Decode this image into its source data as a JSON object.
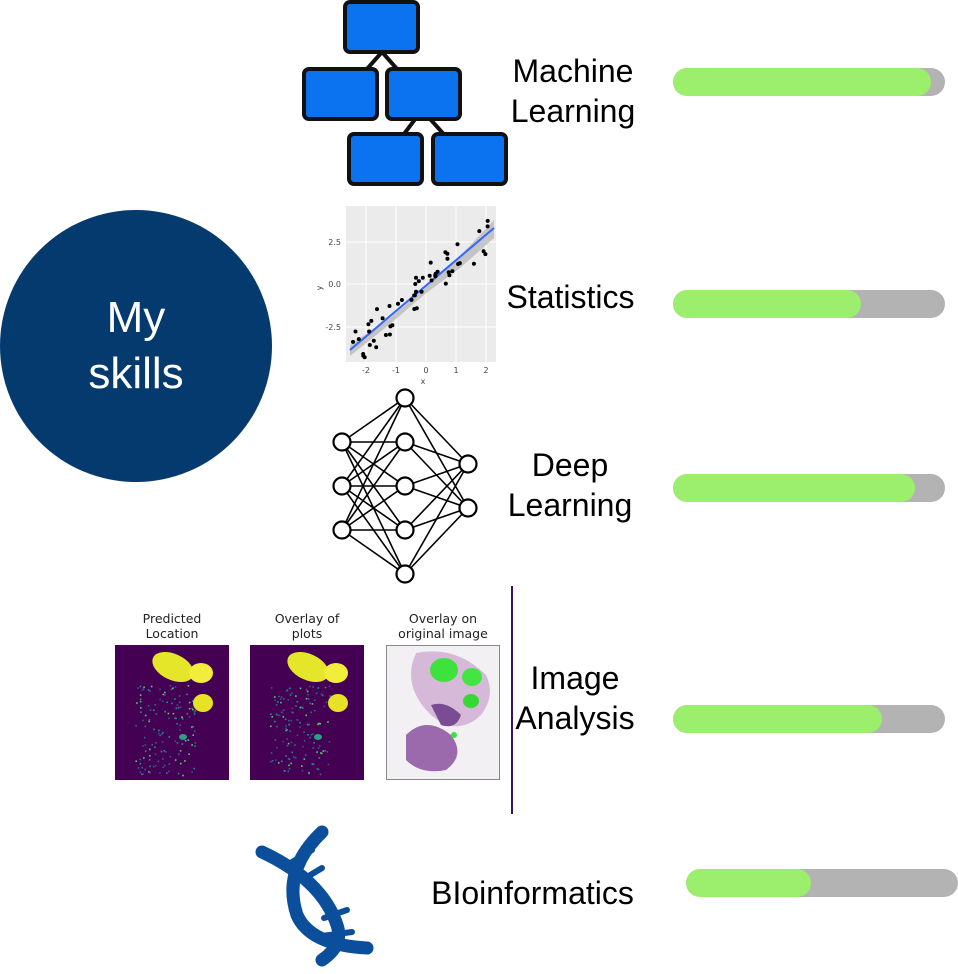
{
  "title_circle": {
    "line1": "My",
    "line2": "skills",
    "color": "#053a6e"
  },
  "colors": {
    "bar_fill": "#9cef6c",
    "bar_track": "#b3b3b3",
    "tree_box": "#0b72f0",
    "dna": "#0b4f9c",
    "divider": "#3b1260"
  },
  "skills": [
    {
      "id": "machine-learning",
      "line1": "Machine",
      "line2": "Learning",
      "level": 0.95,
      "icon": "decision-tree-icon"
    },
    {
      "id": "statistics",
      "line1": "Statistics",
      "level": 0.69,
      "icon": "scatter-regression-icon"
    },
    {
      "id": "deep-learning",
      "line1": "Deep",
      "line2": "Learning",
      "level": 0.89,
      "icon": "neural-network-icon"
    },
    {
      "id": "image-analysis",
      "line1": "Image",
      "line2": "Analysis",
      "level": 0.77,
      "icon": "spatial-overlay-icon"
    },
    {
      "id": "bioinformatics",
      "line1": "BIoinformatics",
      "level": 0.46,
      "icon": "dna-icon"
    }
  ],
  "scatter_plot": {
    "x_label": "x",
    "y_label": "y",
    "x_ticks": [
      "-2",
      "-1",
      "0",
      "1",
      "2"
    ],
    "y_ticks": [
      "2.5",
      "0.0",
      "-2.5"
    ]
  },
  "image_panels": [
    {
      "title_line1": "Predicted",
      "title_line2": "Location"
    },
    {
      "title_line1": "Overlay of",
      "title_line2": "plots"
    },
    {
      "title_line1": "Overlay on",
      "title_line2": "original image"
    }
  ]
}
